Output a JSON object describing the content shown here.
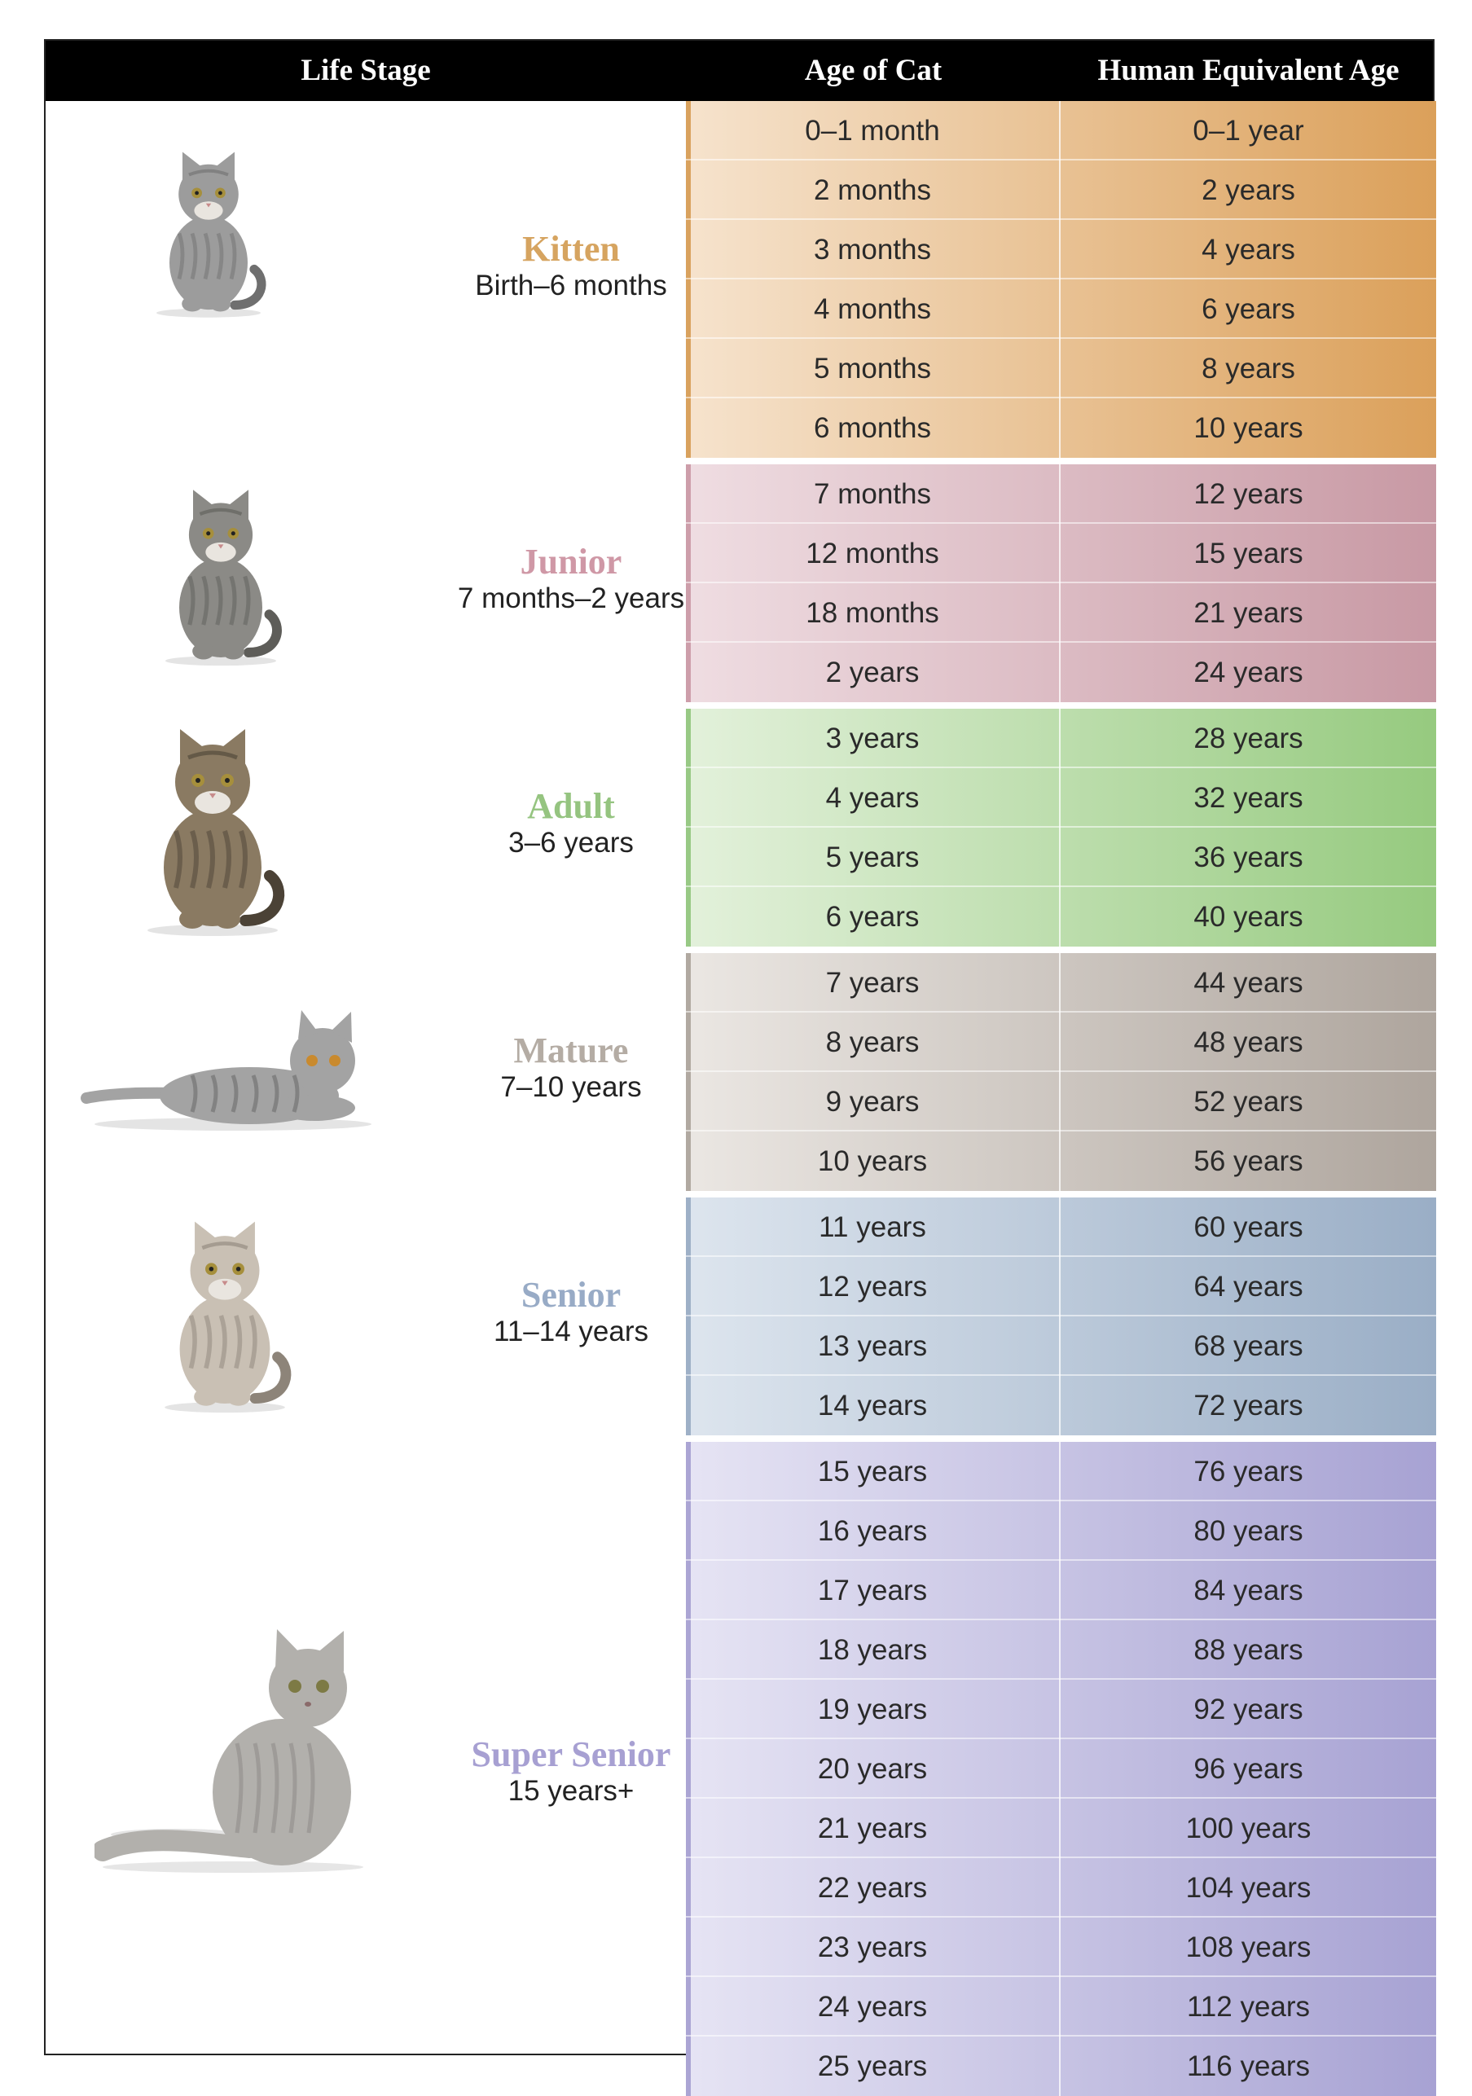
{
  "header": {
    "life_stage": "Life Stage",
    "age_of_cat": "Age of Cat",
    "human_age": "Human Equivalent Age"
  },
  "stages": [
    {
      "name": "Kitten",
      "range": "Birth–6 months",
      "name_color": "#d6a460",
      "grad_from": "#f6e3cd",
      "grad_to": "#dba05a",
      "accent": "#d9a25e",
      "rows": [
        {
          "cat": "0–1 month",
          "human": "0–1 year"
        },
        {
          "cat": "2 months",
          "human": "2 years"
        },
        {
          "cat": "3 months",
          "human": "4 years"
        },
        {
          "cat": "4 months",
          "human": "6 years"
        },
        {
          "cat": "5 months",
          "human": "8 years"
        },
        {
          "cat": "6 months",
          "human": "10 years"
        }
      ]
    },
    {
      "name": "Junior",
      "range": "7 months–2 years",
      "name_color": "#cf98a6",
      "grad_from": "#efdde2",
      "grad_to": "#c899a4",
      "accent": "#cd9eaa",
      "rows": [
        {
          "cat": "7 months",
          "human": "12 years"
        },
        {
          "cat": "12 months",
          "human": "15 years"
        },
        {
          "cat": "18 months",
          "human": "21 years"
        },
        {
          "cat": "2 years",
          "human": "24 years"
        }
      ]
    },
    {
      "name": "Adult",
      "range": "3–6 years",
      "name_color": "#95c480",
      "grad_from": "#e3f1db",
      "grad_to": "#96ca7f",
      "accent": "#98c985",
      "rows": [
        {
          "cat": "3 years",
          "human": "28 years"
        },
        {
          "cat": "4 years",
          "human": "32 years"
        },
        {
          "cat": "5 years",
          "human": "36 years"
        },
        {
          "cat": "6 years",
          "human": "40 years"
        }
      ]
    },
    {
      "name": "Mature",
      "range": "7–10 years",
      "name_color": "#b4aca4",
      "grad_from": "#ebe7e3",
      "grad_to": "#aea59d",
      "accent": "#b1a9a1",
      "rows": [
        {
          "cat": "7 years",
          "human": "44 years"
        },
        {
          "cat": "8 years",
          "human": "48 years"
        },
        {
          "cat": "9 years",
          "human": "52 years"
        },
        {
          "cat": "10 years",
          "human": "56 years"
        }
      ]
    },
    {
      "name": "Senior",
      "range": "11–14 years",
      "name_color": "#98abc6",
      "grad_from": "#dde5ee",
      "grad_to": "#9aaec6",
      "accent": "#9eb0c7",
      "rows": [
        {
          "cat": "11 years",
          "human": "60 years"
        },
        {
          "cat": "12 years",
          "human": "64 years"
        },
        {
          "cat": "13 years",
          "human": "68 years"
        },
        {
          "cat": "14 years",
          "human": "72 years"
        }
      ]
    },
    {
      "name": "Super Senior",
      "range": "15 years+",
      "name_color": "#a7a0d2",
      "grad_from": "#e6e4f4",
      "grad_to": "#a7a2d3",
      "accent": "#aba5d4",
      "rows": [
        {
          "cat": "15 years",
          "human": "76 years"
        },
        {
          "cat": "16 years",
          "human": "80 years"
        },
        {
          "cat": "17 years",
          "human": "84 years"
        },
        {
          "cat": "18 years",
          "human": "88 years"
        },
        {
          "cat": "19 years",
          "human": "92 years"
        },
        {
          "cat": "20 years",
          "human": "96 years"
        },
        {
          "cat": "21 years",
          "human": "100 years"
        },
        {
          "cat": "22 years",
          "human": "104 years"
        },
        {
          "cat": "23 years",
          "human": "108 years"
        },
        {
          "cat": "24 years",
          "human": "112 years"
        },
        {
          "cat": "25 years",
          "human": "116 years"
        }
      ]
    }
  ]
}
